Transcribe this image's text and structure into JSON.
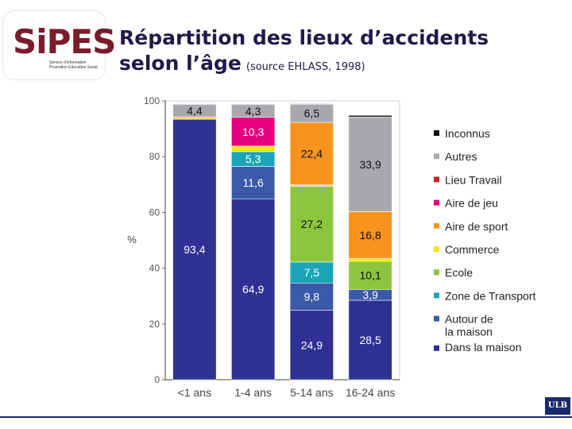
{
  "logo": {
    "text": "SiPES",
    "subtitle": "Service d'information Promotion Education Santé"
  },
  "title": {
    "line1": "Répartition des lieux d’accidents",
    "line2": "selon l’âge",
    "source": "(source EHLASS, 1998)"
  },
  "ulb_badge": "ULB",
  "chart_data": {
    "type": "bar",
    "stacked": true,
    "categories": [
      "<1 ans",
      "1-4 ans",
      "5-14 ans",
      "16-24 ans"
    ],
    "ylabel": "%",
    "ylim": [
      0,
      100
    ],
    "yticks": [
      0,
      20,
      40,
      60,
      80,
      100
    ],
    "legend_position": "right",
    "series": [
      {
        "name": "Dans la maison",
        "color": "#2e3192",
        "values": [
          93.4,
          64.9,
          24.9,
          28.5
        ],
        "labels": [
          "93,4",
          "64,9",
          "24,9",
          "28,5"
        ]
      },
      {
        "name": "Autour de la maison",
        "color": "#3a5aa8",
        "values": [
          0,
          11.6,
          9.8,
          3.9
        ],
        "labels": [
          "",
          "11,6",
          "9,8",
          "3,9"
        ]
      },
      {
        "name": "Zone de Transport",
        "color": "#1aa6b7",
        "values": [
          0,
          5.3,
          7.5,
          0
        ],
        "labels": [
          "",
          "5,3",
          "7,5",
          ""
        ]
      },
      {
        "name": "Ecole",
        "color": "#8cc63f",
        "values": [
          0,
          0,
          27.2,
          10.1
        ],
        "labels": [
          "",
          "",
          "27,2",
          "10,1"
        ]
      },
      {
        "name": "Commerce",
        "color": "#f2e600",
        "values": [
          0.4,
          2.0,
          0.5,
          1.0
        ],
        "labels": [
          "",
          "",
          "",
          ""
        ]
      },
      {
        "name": "Aire de sport",
        "color": "#f7941d",
        "values": [
          0.5,
          0,
          22.4,
          16.8
        ],
        "labels": [
          "",
          "",
          "22,4",
          "16,8"
        ]
      },
      {
        "name": "Aire de jeu",
        "color": "#e6007e",
        "values": [
          0,
          10.3,
          0,
          0
        ],
        "labels": [
          "",
          "10,3",
          "",
          ""
        ]
      },
      {
        "name": "Lieu Travail",
        "color": "#c1272d",
        "values": [
          0,
          0,
          0,
          0
        ],
        "labels": [
          "",
          "",
          "",
          ""
        ]
      },
      {
        "name": "Autres",
        "color": "#a7a9ac",
        "values": [
          4.4,
          4.3,
          6.5,
          33.9
        ],
        "labels": [
          "4,4",
          "4,3",
          "6,5",
          "33,9"
        ]
      },
      {
        "name": "Inconnus",
        "color": "#111111",
        "values": [
          0.2,
          0.3,
          0.2,
          0.6
        ],
        "labels": [
          "",
          "",
          "",
          ""
        ]
      }
    ],
    "legend_order": [
      "Inconnus",
      "Autres",
      "Lieu Travail",
      "Aire de jeu",
      "Aire de sport",
      "Commerce",
      "Ecole",
      "Zone de Transport",
      "Autour de la maison",
      "Dans la maison"
    ]
  }
}
